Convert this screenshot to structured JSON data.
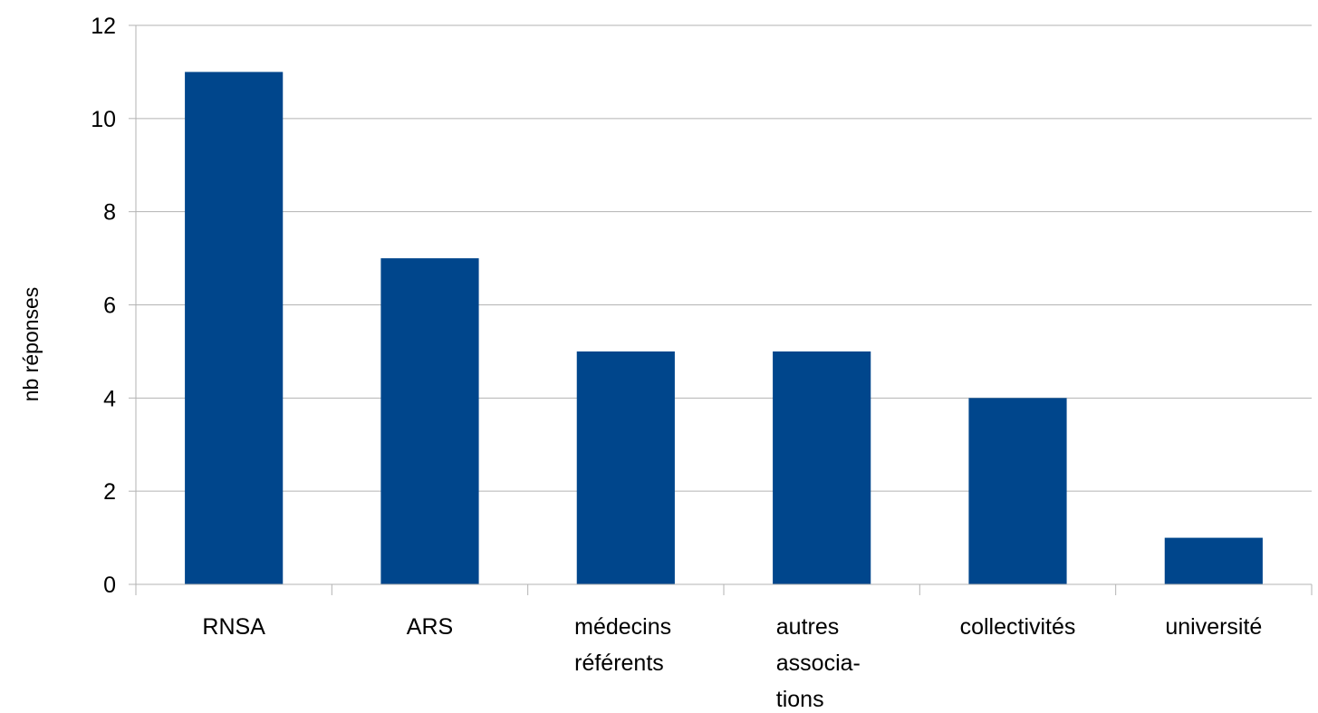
{
  "chart_data": {
    "type": "bar",
    "categories": [
      [
        "RNSA"
      ],
      [
        "ARS"
      ],
      [
        "médecins",
        "référents"
      ],
      [
        "autres",
        "associa-",
        "tions"
      ],
      [
        "collectivités"
      ],
      [
        "université"
      ]
    ],
    "values": [
      11,
      7,
      5,
      5,
      4,
      1
    ],
    "ylabel": "nb réponses",
    "ylim": [
      0,
      12
    ],
    "yticks": [
      0,
      2,
      4,
      6,
      8,
      10,
      12
    ],
    "grid": true,
    "legend": "none",
    "bar_color": "#00468c",
    "grid_color": "#b3b3b3",
    "axis_color": "#b3b3b3"
  }
}
